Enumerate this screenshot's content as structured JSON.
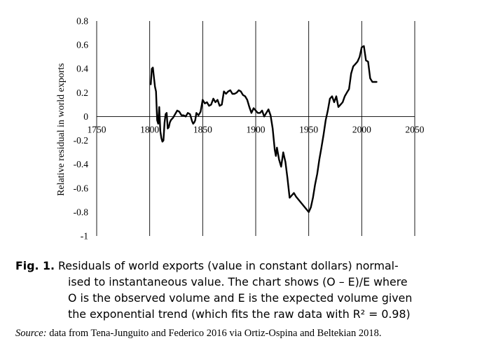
{
  "chart_data": {
    "type": "line",
    "title": "",
    "xlabel": "",
    "ylabel": "Relative residual in world exports",
    "xlim": [
      1750,
      2050
    ],
    "ylim": [
      -1,
      0.8
    ],
    "xticks": [
      "1750",
      "1800",
      "1850",
      "1900",
      "1950",
      "2000",
      "2050"
    ],
    "yticks": [
      "0.8",
      "0.6",
      "0.4",
      "0.2",
      "0",
      "-0.2",
      "-0.4",
      "-0.6",
      "-0.8",
      "-1"
    ],
    "grid": "vertical",
    "legend": "none",
    "series": [
      {
        "x": [
          1801,
          1802,
          1803,
          1804,
          1805,
          1806,
          1807,
          1808,
          1809,
          1810,
          1811,
          1812,
          1813,
          1814,
          1815,
          1816,
          1817,
          1818,
          1819,
          1820,
          1822,
          1824,
          1826,
          1828,
          1830,
          1832,
          1834,
          1836,
          1838,
          1840,
          1841,
          1842,
          1843,
          1844,
          1846,
          1848,
          1850,
          1852,
          1854,
          1856,
          1858,
          1860,
          1862,
          1864,
          1866,
          1868,
          1870,
          1872,
          1874,
          1876,
          1878,
          1880,
          1882,
          1884,
          1886,
          1888,
          1890,
          1892,
          1894,
          1896,
          1898,
          1900,
          1902,
          1904,
          1906,
          1908,
          1910,
          1912,
          1914,
          1916,
          1918,
          1919,
          1920,
          1922,
          1924,
          1926,
          1928,
          1930,
          1932,
          1934,
          1936,
          1938,
          1950,
          1952,
          1954,
          1956,
          1958,
          1960,
          1962,
          1964,
          1966,
          1968,
          1970,
          1972,
          1974,
          1976,
          1978,
          1980,
          1982,
          1984,
          1986,
          1988,
          1990,
          1992,
          1994,
          1996,
          1998,
          2000,
          2002,
          2004,
          2006,
          2008,
          2010,
          2012,
          2014
        ],
        "y": [
          0.27,
          0.4,
          0.41,
          0.33,
          0.25,
          0.21,
          -0.03,
          -0.06,
          0.08,
          -0.12,
          -0.18,
          -0.21,
          -0.2,
          -0.05,
          0.02,
          0.03,
          -0.1,
          -0.09,
          -0.05,
          -0.03,
          -0.01,
          0.02,
          0.05,
          0.04,
          0.01,
          0.01,
          0.0,
          0.03,
          0.02,
          -0.04,
          -0.06,
          -0.05,
          -0.03,
          0.03,
          0.01,
          0.04,
          0.14,
          0.11,
          0.12,
          0.09,
          0.1,
          0.15,
          0.12,
          0.14,
          0.09,
          0.1,
          0.21,
          0.19,
          0.21,
          0.22,
          0.19,
          0.19,
          0.2,
          0.22,
          0.21,
          0.18,
          0.17,
          0.14,
          0.08,
          0.03,
          0.07,
          0.05,
          0.03,
          0.03,
          0.05,
          0.0,
          0.03,
          0.06,
          0.01,
          -0.1,
          -0.28,
          -0.33,
          -0.26,
          -0.36,
          -0.42,
          -0.3,
          -0.38,
          -0.52,
          -0.68,
          -0.66,
          -0.64,
          -0.67,
          -0.8,
          -0.76,
          -0.68,
          -0.57,
          -0.48,
          -0.36,
          -0.26,
          -0.15,
          -0.03,
          0.05,
          0.15,
          0.17,
          0.12,
          0.17,
          0.08,
          0.1,
          0.12,
          0.17,
          0.2,
          0.23,
          0.36,
          0.42,
          0.44,
          0.46,
          0.5,
          0.58,
          0.59,
          0.47,
          0.46,
          0.32,
          0.29,
          0.29,
          0.29
        ]
      }
    ]
  },
  "caption": {
    "label": "Fig. 1.",
    "line1": " Residuals of world exports (value in constant dollars) normal-",
    "line2": "ised to instantaneous value. The chart shows (O – E)/E where",
    "line3": "O is the observed volume and E is the expected volume given",
    "line4": "the exponential trend (which fits the raw data with R² = 0.98)"
  },
  "source": {
    "label": "Source:",
    "text": " data from Tena-Junguito and Federico 2016 via Ortiz-Ospina and Beltekian 2018."
  }
}
